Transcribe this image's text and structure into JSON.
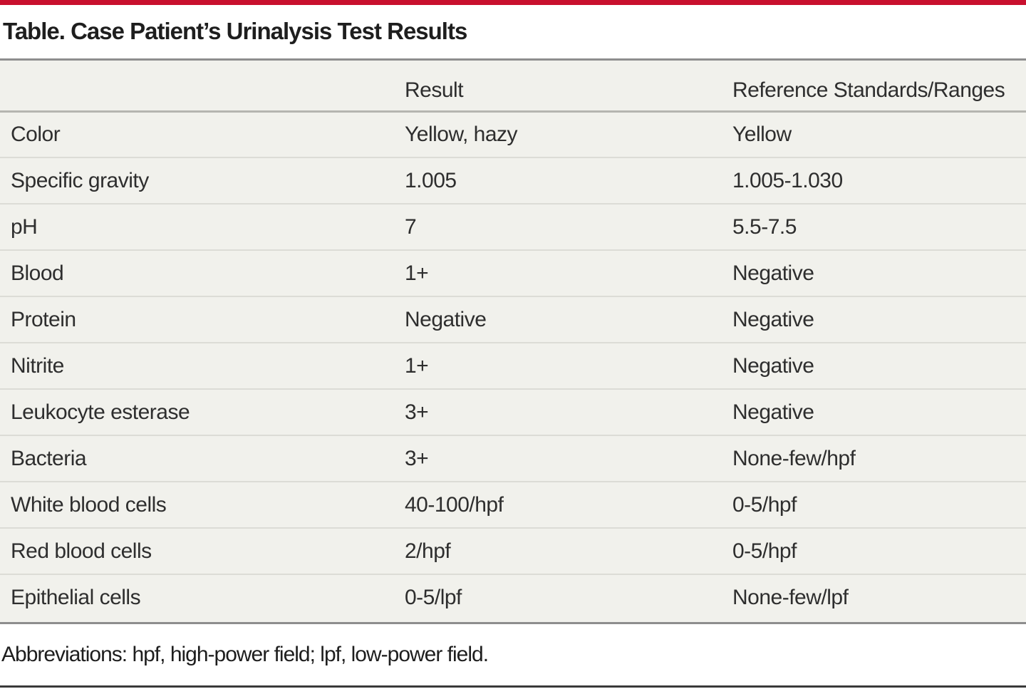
{
  "table": {
    "title": "Table. Case Patient’s Urinalysis Test Results",
    "headers": [
      "",
      "Result",
      "Reference Standards/Ranges"
    ],
    "rows": [
      [
        "Color",
        "Yellow, hazy",
        "Yellow"
      ],
      [
        "Specific gravity",
        "1.005",
        "1.005-1.030"
      ],
      [
        "pH",
        "7",
        "5.5-7.5"
      ],
      [
        "Blood",
        "1+",
        "Negative"
      ],
      [
        "Protein",
        "Negative",
        "Negative"
      ],
      [
        "Nitrite",
        "1+",
        "Negative"
      ],
      [
        "Leukocyte esterase",
        "3+",
        "Negative"
      ],
      [
        "Bacteria",
        "3+",
        "None-few/hpf"
      ],
      [
        "White blood cells",
        "40-100/hpf",
        "0-5/hpf"
      ],
      [
        "Red blood cells",
        "2/hpf",
        "0-5/hpf"
      ],
      [
        "Epithelial cells",
        "0-5/lpf",
        "None-few/lpf"
      ]
    ],
    "footnote": "Abbreviations: hpf, high-power field; lpf, low-power field."
  },
  "colors": {
    "accent_rule": "#c8102e",
    "table_background": "#f1f1ec",
    "rule_gray": "#8e8e8e"
  }
}
